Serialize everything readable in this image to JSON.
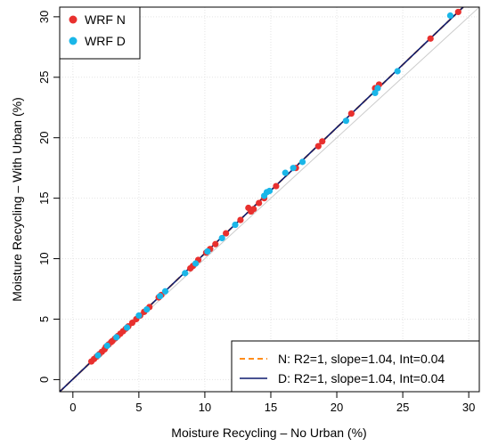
{
  "chart_data": {
    "type": "scatter",
    "xlabel": "Moisture Recycling – No Urban (%)",
    "ylabel": "Moisture Recycling – With Urban (%)",
    "xlim": [
      -1,
      30.8
    ],
    "ylim": [
      -1,
      30.8
    ],
    "xticks": [
      "0",
      "5",
      "10",
      "15",
      "20",
      "25",
      "30"
    ],
    "yticks": [
      "0",
      "5",
      "10",
      "15",
      "20",
      "25",
      "30"
    ],
    "grid": true,
    "legend_points": {
      "placement": "top-left",
      "entries": [
        "WRF N",
        "WRF D"
      ]
    },
    "legend_lines": {
      "placement": "bottom-right",
      "entries": [
        "N: R2=1, slope=1.04, Int=0.04",
        "D: R2=1, slope=1.04, Int=0.04"
      ]
    },
    "colors": {
      "wrf_n": "#e8302e",
      "wrf_d": "#1ab6e8",
      "fit_n": "#ff8c1a",
      "fit_d": "#0d1a6e",
      "one_to_one": "#cccccc",
      "grid": "#e3e3e3"
    },
    "one_to_one_line": {
      "slope": 1,
      "intercept": 0
    },
    "fit_lines": [
      {
        "name": "N",
        "slope": 1.04,
        "intercept": 0.04
      },
      {
        "name": "D",
        "slope": 1.04,
        "intercept": 0.04
      }
    ],
    "series": [
      {
        "name": "WRF N",
        "points": [
          [
            1.4,
            1.5
          ],
          [
            1.6,
            1.7
          ],
          [
            1.8,
            1.9
          ],
          [
            2.0,
            2.1
          ],
          [
            2.2,
            2.3
          ],
          [
            2.4,
            2.5
          ],
          [
            2.5,
            2.7
          ],
          [
            2.7,
            2.9
          ],
          [
            2.9,
            3.1
          ],
          [
            3.0,
            3.2
          ],
          [
            3.2,
            3.4
          ],
          [
            3.4,
            3.6
          ],
          [
            3.6,
            3.8
          ],
          [
            3.8,
            4.0
          ],
          [
            4.0,
            4.2
          ],
          [
            4.2,
            4.4
          ],
          [
            4.5,
            4.7
          ],
          [
            4.8,
            5.0
          ],
          [
            5.1,
            5.3
          ],
          [
            5.4,
            5.6
          ],
          [
            5.8,
            6.0
          ],
          [
            6.5,
            6.8
          ],
          [
            6.7,
            7.0
          ],
          [
            8.9,
            9.2
          ],
          [
            9.1,
            9.4
          ],
          [
            9.5,
            9.9
          ],
          [
            10.1,
            10.5
          ],
          [
            10.4,
            10.8
          ],
          [
            10.8,
            11.2
          ],
          [
            11.6,
            12.1
          ],
          [
            12.7,
            13.2
          ],
          [
            13.3,
            14.2
          ],
          [
            13.5,
            13.9
          ],
          [
            13.7,
            14.1
          ],
          [
            14.1,
            14.6
          ],
          [
            14.5,
            15.0
          ],
          [
            15.4,
            16.0
          ],
          [
            16.9,
            17.5
          ],
          [
            18.6,
            19.3
          ],
          [
            18.9,
            19.7
          ],
          [
            21.1,
            22.0
          ],
          [
            22.9,
            24.1
          ],
          [
            23.2,
            24.4
          ],
          [
            27.1,
            28.2
          ],
          [
            29.2,
            30.4
          ]
        ]
      },
      {
        "name": "WRF D",
        "points": [
          [
            1.9,
            2.0
          ],
          [
            2.6,
            2.8
          ],
          [
            3.3,
            3.5
          ],
          [
            4.1,
            4.3
          ],
          [
            5.0,
            5.3
          ],
          [
            5.6,
            5.8
          ],
          [
            6.6,
            6.9
          ],
          [
            7.0,
            7.3
          ],
          [
            8.5,
            8.8
          ],
          [
            9.3,
            9.6
          ],
          [
            10.2,
            10.6
          ],
          [
            11.3,
            11.7
          ],
          [
            12.3,
            12.8
          ],
          [
            14.5,
            15.2
          ],
          [
            14.7,
            15.5
          ],
          [
            14.9,
            15.6
          ],
          [
            16.1,
            17.1
          ],
          [
            16.7,
            17.5
          ],
          [
            17.4,
            18.0
          ],
          [
            20.7,
            21.4
          ],
          [
            22.9,
            23.7
          ],
          [
            23.1,
            24.1
          ],
          [
            24.6,
            25.5
          ],
          [
            28.6,
            30.1
          ]
        ]
      }
    ]
  }
}
